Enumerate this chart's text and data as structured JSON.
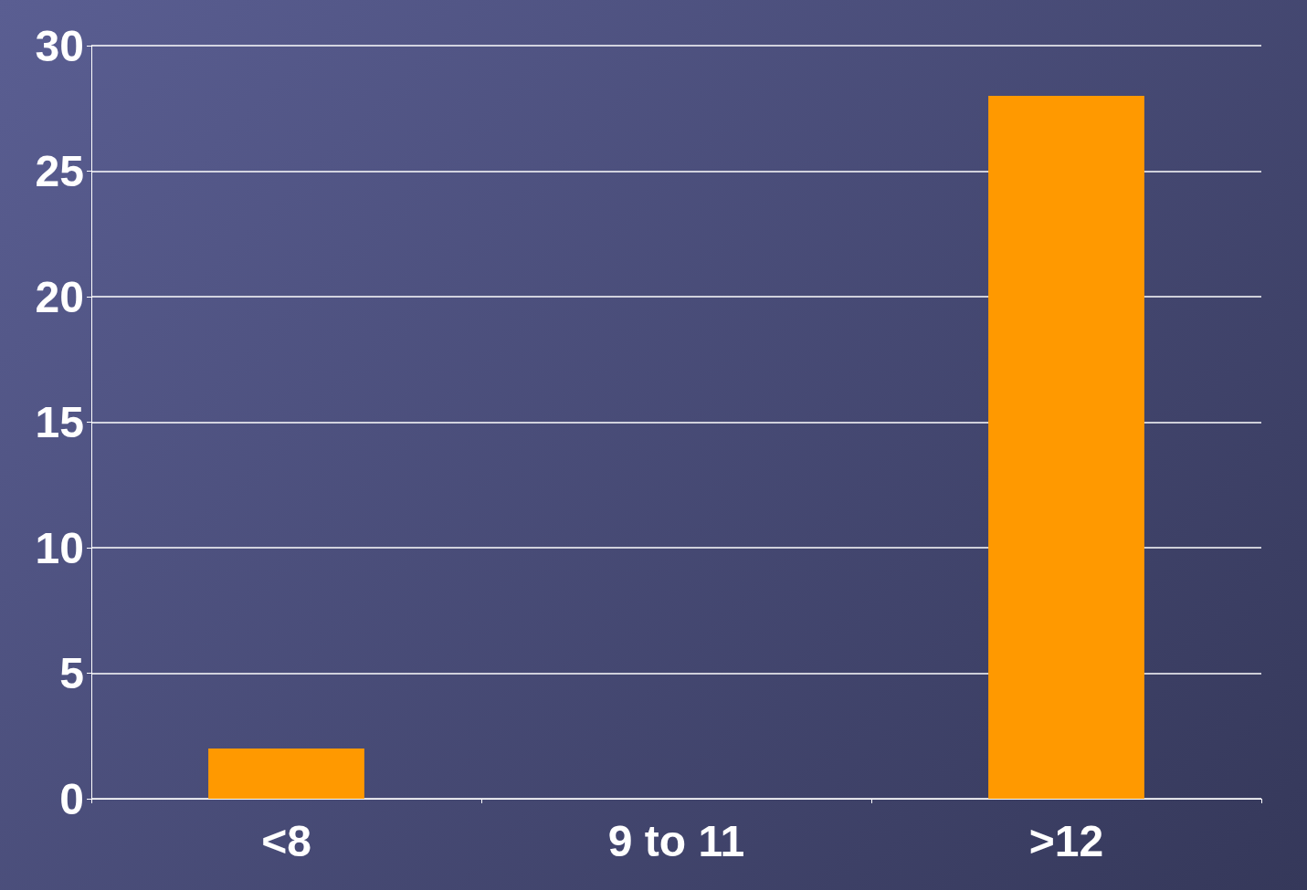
{
  "chart_data": {
    "type": "bar",
    "categories": [
      "<8",
      "9 to 11",
      ">12"
    ],
    "values": [
      2,
      0,
      28
    ],
    "color": "#ff9900",
    "ylim": [
      0,
      30
    ],
    "yticks": [
      0,
      5,
      10,
      15,
      20,
      25,
      30
    ],
    "grid": "y"
  }
}
